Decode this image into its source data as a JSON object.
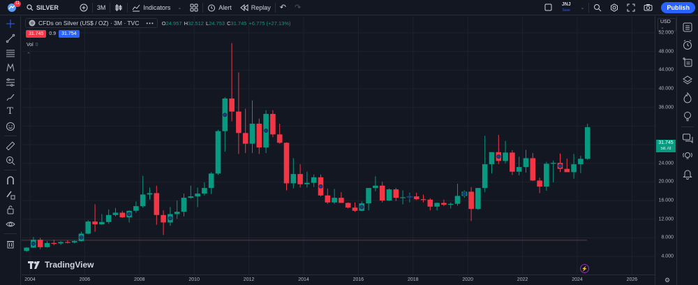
{
  "topbar": {
    "notification_count": "11",
    "symbol": "SILVER",
    "interval": "3M",
    "indicators_label": "Indicators",
    "alert_label": "Alert",
    "replay_label": "Replay",
    "layout_name": "JNJ",
    "layout_save_label": "Save",
    "publish_label": "Publish"
  },
  "legend": {
    "title": "CFDs on Silver (US$ / OZ) · 3M · TVC",
    "open_label": "O",
    "open": "24.957",
    "high_label": "H",
    "high": "32.512",
    "low_label": "L",
    "low": "24.753",
    "close_label": "C",
    "close": "31.745",
    "change": "+6.775 (+27.13%)",
    "bid": "31.745",
    "spread": "0.9",
    "ask": "31.754",
    "vol_label": "Vol",
    "vol_value": "0"
  },
  "price_axis": {
    "currency": "USD",
    "labels": [
      "52.000",
      "48.000",
      "44.000",
      "40.000",
      "36.000",
      "28.000",
      "24.000",
      "20.000",
      "16.000",
      "12.000",
      "8.000",
      "4.000"
    ],
    "last_price": "31.745",
    "countdown": "58.7d"
  },
  "time_axis": {
    "labels": [
      "2004",
      "2006",
      "2008",
      "2010",
      "2012",
      "2014",
      "2016",
      "2018",
      "2020",
      "2022",
      "2024",
      "2026"
    ]
  },
  "branding": {
    "logo_text": "TradingView"
  },
  "colors": {
    "background": "#131722",
    "up": "#089981",
    "down": "#f23645",
    "accent": "#2962ff",
    "grid": "#1e222d"
  },
  "chart_data": {
    "type": "candlestick",
    "title": "CFDs on Silver (US$ / OZ) · 3M · TVC",
    "xlabel": "",
    "ylabel": "USD",
    "ylim": [
      2,
      54
    ],
    "x_ticks": [
      "2004",
      "2006",
      "2008",
      "2010",
      "2012",
      "2014",
      "2016",
      "2018",
      "2020",
      "2022",
      "2024",
      "2026"
    ],
    "y_ticks": [
      4,
      8,
      12,
      16,
      20,
      24,
      28,
      32,
      36,
      40,
      44,
      48,
      52
    ],
    "grid": true,
    "interval": "3M",
    "candles": [
      {
        "t": "2003Q4",
        "o": 5.2,
        "h": 6.0,
        "l": 5.0,
        "c": 5.9
      },
      {
        "t": "2004Q1",
        "o": 5.9,
        "h": 8.2,
        "l": 5.8,
        "c": 7.6
      },
      {
        "t": "2004Q2",
        "o": 7.6,
        "h": 8.0,
        "l": 5.6,
        "c": 6.0
      },
      {
        "t": "2004Q3",
        "o": 6.0,
        "h": 7.3,
        "l": 5.9,
        "c": 6.9
      },
      {
        "t": "2004Q4",
        "o": 6.9,
        "h": 7.6,
        "l": 6.4,
        "c": 6.8
      },
      {
        "t": "2005Q1",
        "o": 6.8,
        "h": 7.3,
        "l": 6.5,
        "c": 7.1
      },
      {
        "t": "2005Q2",
        "o": 7.1,
        "h": 7.5,
        "l": 6.8,
        "c": 7.0
      },
      {
        "t": "2005Q3",
        "o": 7.0,
        "h": 7.5,
        "l": 6.8,
        "c": 7.3
      },
      {
        "t": "2005Q4",
        "o": 7.3,
        "h": 9.3,
        "l": 7.2,
        "c": 8.9
      },
      {
        "t": "2006Q1",
        "o": 8.9,
        "h": 11.8,
        "l": 8.8,
        "c": 11.5
      },
      {
        "t": "2006Q2",
        "o": 11.5,
        "h": 15.2,
        "l": 9.3,
        "c": 10.9
      },
      {
        "t": "2006Q3",
        "o": 10.9,
        "h": 13.1,
        "l": 10.8,
        "c": 11.4
      },
      {
        "t": "2006Q4",
        "o": 11.4,
        "h": 14.1,
        "l": 11.0,
        "c": 12.9
      },
      {
        "t": "2007Q1",
        "o": 12.9,
        "h": 14.4,
        "l": 12.6,
        "c": 13.4
      },
      {
        "t": "2007Q2",
        "o": 13.4,
        "h": 13.8,
        "l": 12.3,
        "c": 12.4
      },
      {
        "t": "2007Q3",
        "o": 12.4,
        "h": 13.9,
        "l": 11.3,
        "c": 13.8
      },
      {
        "t": "2007Q4",
        "o": 13.8,
        "h": 15.8,
        "l": 13.4,
        "c": 14.8
      },
      {
        "t": "2008Q1",
        "o": 14.8,
        "h": 21.3,
        "l": 14.5,
        "c": 17.3
      },
      {
        "t": "2008Q2",
        "o": 17.3,
        "h": 18.8,
        "l": 16.2,
        "c": 17.6
      },
      {
        "t": "2008Q3",
        "o": 17.6,
        "h": 19.2,
        "l": 10.8,
        "c": 12.9
      },
      {
        "t": "2008Q4",
        "o": 12.9,
        "h": 13.9,
        "l": 8.6,
        "c": 11.3
      },
      {
        "t": "2009Q1",
        "o": 11.3,
        "h": 14.6,
        "l": 10.6,
        "c": 13.1
      },
      {
        "t": "2009Q2",
        "o": 13.1,
        "h": 16.0,
        "l": 12.1,
        "c": 13.6
      },
      {
        "t": "2009Q3",
        "o": 13.6,
        "h": 17.5,
        "l": 12.6,
        "c": 16.6
      },
      {
        "t": "2009Q4",
        "o": 16.6,
        "h": 19.2,
        "l": 16.4,
        "c": 16.9
      },
      {
        "t": "2010Q1",
        "o": 16.9,
        "h": 18.8,
        "l": 14.6,
        "c": 17.5
      },
      {
        "t": "2010Q2",
        "o": 17.5,
        "h": 19.9,
        "l": 17.1,
        "c": 18.7
      },
      {
        "t": "2010Q3",
        "o": 18.7,
        "h": 22.1,
        "l": 17.4,
        "c": 21.8
      },
      {
        "t": "2010Q4",
        "o": 21.8,
        "h": 31.2,
        "l": 21.5,
        "c": 30.9
      },
      {
        "t": "2011Q1",
        "o": 30.9,
        "h": 38.2,
        "l": 26.5,
        "c": 37.9
      },
      {
        "t": "2011Q2",
        "o": 37.9,
        "h": 49.8,
        "l": 33.0,
        "c": 35.1
      },
      {
        "t": "2011Q3",
        "o": 35.1,
        "h": 43.5,
        "l": 26.0,
        "c": 30.5
      },
      {
        "t": "2011Q4",
        "o": 30.5,
        "h": 35.7,
        "l": 26.2,
        "c": 28.2
      },
      {
        "t": "2012Q1",
        "o": 28.2,
        "h": 37.5,
        "l": 26.2,
        "c": 32.5
      },
      {
        "t": "2012Q2",
        "o": 32.5,
        "h": 33.6,
        "l": 26.0,
        "c": 27.4
      },
      {
        "t": "2012Q3",
        "o": 27.4,
        "h": 35.4,
        "l": 26.2,
        "c": 34.6
      },
      {
        "t": "2012Q4",
        "o": 34.6,
        "h": 35.4,
        "l": 29.6,
        "c": 30.2
      },
      {
        "t": "2013Q1",
        "o": 30.2,
        "h": 32.5,
        "l": 28.2,
        "c": 28.4
      },
      {
        "t": "2013Q2",
        "o": 28.4,
        "h": 28.5,
        "l": 18.2,
        "c": 19.7
      },
      {
        "t": "2013Q3",
        "o": 19.7,
        "h": 25.1,
        "l": 18.6,
        "c": 21.7
      },
      {
        "t": "2013Q4",
        "o": 21.7,
        "h": 23.8,
        "l": 18.8,
        "c": 19.5
      },
      {
        "t": "2014Q1",
        "o": 19.5,
        "h": 22.2,
        "l": 18.8,
        "c": 19.8
      },
      {
        "t": "2014Q2",
        "o": 19.8,
        "h": 21.6,
        "l": 18.9,
        "c": 21.0
      },
      {
        "t": "2014Q3",
        "o": 21.0,
        "h": 21.6,
        "l": 16.9,
        "c": 17.1
      },
      {
        "t": "2014Q4",
        "o": 17.1,
        "h": 18.6,
        "l": 15.3,
        "c": 15.6
      },
      {
        "t": "2015Q1",
        "o": 15.6,
        "h": 18.5,
        "l": 15.3,
        "c": 16.6
      },
      {
        "t": "2015Q2",
        "o": 16.6,
        "h": 17.8,
        "l": 15.5,
        "c": 15.5
      },
      {
        "t": "2015Q3",
        "o": 15.5,
        "h": 15.6,
        "l": 14.3,
        "c": 14.5
      },
      {
        "t": "2015Q4",
        "o": 14.5,
        "h": 15.6,
        "l": 13.6,
        "c": 13.8
      },
      {
        "t": "2016Q1",
        "o": 13.8,
        "h": 15.8,
        "l": 13.7,
        "c": 15.4
      },
      {
        "t": "2016Q2",
        "o": 15.4,
        "h": 18.5,
        "l": 13.9,
        "c": 18.7
      },
      {
        "t": "2016Q3",
        "o": 18.7,
        "h": 21.2,
        "l": 18.0,
        "c": 19.2
      },
      {
        "t": "2016Q4",
        "o": 19.2,
        "h": 20.0,
        "l": 15.6,
        "c": 16.0
      },
      {
        "t": "2017Q1",
        "o": 16.0,
        "h": 18.6,
        "l": 15.9,
        "c": 18.4
      },
      {
        "t": "2017Q2",
        "o": 18.4,
        "h": 18.7,
        "l": 15.9,
        "c": 16.6
      },
      {
        "t": "2017Q3",
        "o": 16.6,
        "h": 18.2,
        "l": 15.2,
        "c": 16.7
      },
      {
        "t": "2017Q4",
        "o": 16.7,
        "h": 17.7,
        "l": 15.6,
        "c": 16.9
      },
      {
        "t": "2018Q1",
        "o": 16.9,
        "h": 17.7,
        "l": 16.1,
        "c": 16.3
      },
      {
        "t": "2018Q2",
        "o": 16.3,
        "h": 17.3,
        "l": 15.6,
        "c": 16.2
      },
      {
        "t": "2018Q3",
        "o": 16.2,
        "h": 16.5,
        "l": 13.9,
        "c": 14.7
      },
      {
        "t": "2018Q4",
        "o": 14.7,
        "h": 15.6,
        "l": 13.9,
        "c": 15.5
      },
      {
        "t": "2019Q1",
        "o": 15.5,
        "h": 16.2,
        "l": 14.8,
        "c": 15.1
      },
      {
        "t": "2019Q2",
        "o": 15.1,
        "h": 15.6,
        "l": 14.3,
        "c": 15.3
      },
      {
        "t": "2019Q3",
        "o": 15.3,
        "h": 19.6,
        "l": 14.9,
        "c": 17.0
      },
      {
        "t": "2019Q4",
        "o": 17.0,
        "h": 18.2,
        "l": 16.6,
        "c": 17.9
      },
      {
        "t": "2020Q1",
        "o": 17.9,
        "h": 18.9,
        "l": 11.6,
        "c": 14.2
      },
      {
        "t": "2020Q2",
        "o": 14.2,
        "h": 18.6,
        "l": 14.0,
        "c": 18.7
      },
      {
        "t": "2020Q3",
        "o": 18.7,
        "h": 29.9,
        "l": 17.8,
        "c": 23.8
      },
      {
        "t": "2020Q4",
        "o": 23.8,
        "h": 26.2,
        "l": 21.8,
        "c": 26.4
      },
      {
        "t": "2021Q1",
        "o": 26.4,
        "h": 30.1,
        "l": 23.8,
        "c": 24.5
      },
      {
        "t": "2021Q2",
        "o": 24.5,
        "h": 28.8,
        "l": 24.0,
        "c": 26.3
      },
      {
        "t": "2021Q3",
        "o": 26.3,
        "h": 26.8,
        "l": 21.5,
        "c": 22.2
      },
      {
        "t": "2021Q4",
        "o": 22.2,
        "h": 25.4,
        "l": 21.4,
        "c": 23.2
      },
      {
        "t": "2022Q1",
        "o": 23.2,
        "h": 26.9,
        "l": 22.0,
        "c": 25.1
      },
      {
        "t": "2022Q2",
        "o": 25.1,
        "h": 26.2,
        "l": 20.2,
        "c": 20.3
      },
      {
        "t": "2022Q3",
        "o": 20.3,
        "h": 20.9,
        "l": 17.6,
        "c": 19.0
      },
      {
        "t": "2022Q4",
        "o": 19.0,
        "h": 24.3,
        "l": 18.1,
        "c": 23.9
      },
      {
        "t": "2023Q1",
        "o": 23.9,
        "h": 24.6,
        "l": 19.9,
        "c": 24.1
      },
      {
        "t": "2023Q2",
        "o": 24.1,
        "h": 26.1,
        "l": 22.1,
        "c": 22.8
      },
      {
        "t": "2023Q3",
        "o": 22.8,
        "h": 25.0,
        "l": 22.2,
        "c": 22.1
      },
      {
        "t": "2023Q4",
        "o": 22.1,
        "h": 26.0,
        "l": 20.7,
        "c": 23.8
      },
      {
        "t": "2024Q1",
        "o": 23.8,
        "h": 25.6,
        "l": 21.9,
        "c": 24.96
      },
      {
        "t": "2024Q2",
        "o": 24.957,
        "h": 32.512,
        "l": 24.753,
        "c": 31.745
      }
    ],
    "dividend_markers": [
      "2004Q1",
      "2005Q4",
      "2007Q3",
      "2009Q1",
      "2011Q1",
      "2012Q3",
      "2014Q3",
      "2016Q1",
      "2017Q4",
      "2019Q4",
      "2021Q1",
      "2023Q2"
    ],
    "horizontal_line": 7.5
  }
}
